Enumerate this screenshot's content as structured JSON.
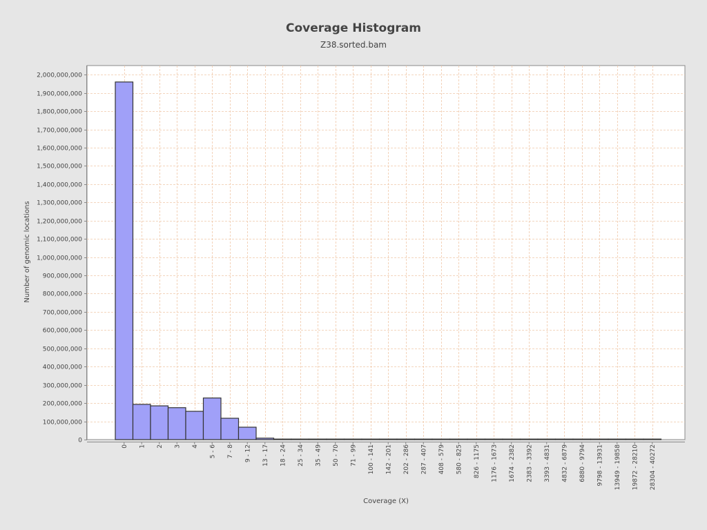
{
  "chart_data": {
    "type": "bar",
    "title": "Coverage Histogram",
    "subtitle": "Z38.sorted.bam",
    "xlabel": "Coverage (X)",
    "ylabel": "Number of genomic locations",
    "ylim": [
      0,
      2050000000
    ],
    "yticks": [
      0,
      100000000,
      200000000,
      300000000,
      400000000,
      500000000,
      600000000,
      700000000,
      800000000,
      900000000,
      1000000000,
      1100000000,
      1200000000,
      1300000000,
      1400000000,
      1500000000,
      1600000000,
      1700000000,
      1800000000,
      1900000000,
      2000000000
    ],
    "ytick_labels": [
      "0",
      "100,000,000",
      "200,000,000",
      "300,000,000",
      "400,000,000",
      "500,000,000",
      "600,000,000",
      "700,000,000",
      "800,000,000",
      "900,000,000",
      "1,000,000,000",
      "1,100,000,000",
      "1,200,000,000",
      "1,300,000,000",
      "1,400,000,000",
      "1,500,000,000",
      "1,600,000,000",
      "1,700,000,000",
      "1,800,000,000",
      "1,900,000,000",
      "2,000,000,000"
    ],
    "categories": [
      "0",
      "1",
      "2",
      "3",
      "4",
      "5 - 6",
      "7 - 8",
      "9 - 12",
      "13 - 17",
      "18 - 24",
      "25 - 34",
      "35 - 49",
      "50 - 70",
      "71 - 99",
      "100 - 141",
      "142 - 201",
      "202 - 286",
      "287 - 407",
      "408 - 579",
      "580 - 825",
      "826 - 1175",
      "1176 - 1673",
      "1674 - 2382",
      "2383 - 3392",
      "3393 - 4831",
      "4832 - 6879",
      "6880 - 9794",
      "9798 - 13931",
      "13949 - 19858",
      "19872 - 28210",
      "28304 - 40272"
    ],
    "values": [
      1960000000,
      193000000,
      185000000,
      175000000,
      155000000,
      228000000,
      117000000,
      68000000,
      8000000,
      3000000,
      500000,
      200000,
      100000,
      50000,
      30000,
      20000,
      10000,
      5000,
      3000,
      2000,
      1000,
      800,
      500,
      300,
      200,
      100,
      50,
      30,
      20,
      10,
      5
    ],
    "grid": true,
    "legend": "none",
    "colors": {
      "bar_fill": "#a0a0f8",
      "bar_stroke": "#333333",
      "plot_bg": "#ffffff",
      "grid": "#f0c8a8",
      "page_bg": "#e6e6e6"
    }
  }
}
